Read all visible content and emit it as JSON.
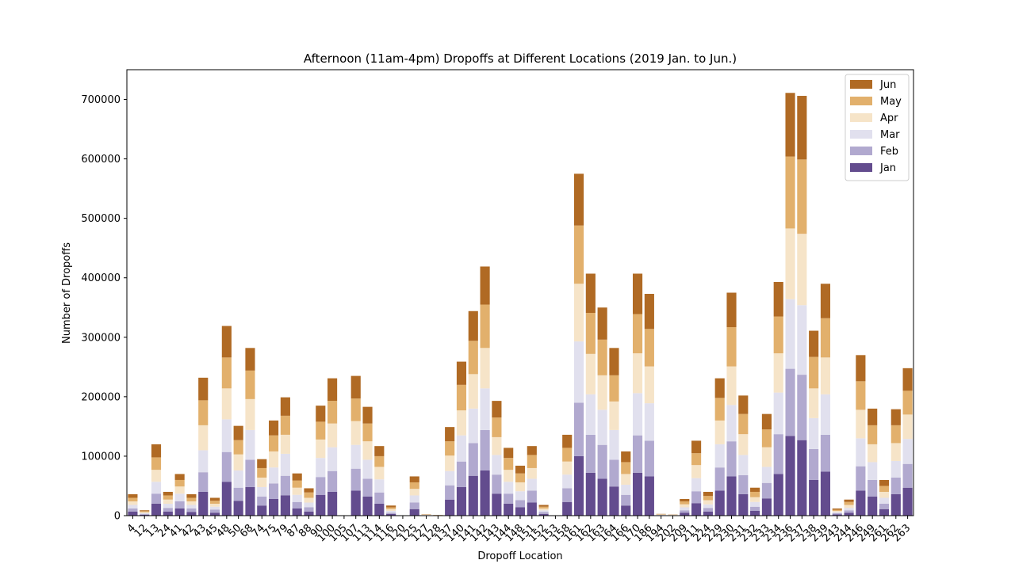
{
  "chart_data": {
    "type": "bar",
    "stacked": true,
    "title": "Afternoon (11am-4pm) Dropoffs at Different Locations (2019 Jan. to Jun.)",
    "xlabel": "Dropoff Location",
    "ylabel": "Number of Dropoffs",
    "ylim": [
      0,
      750000
    ],
    "yticks": [
      0,
      100000,
      200000,
      300000,
      400000,
      500000,
      600000,
      700000
    ],
    "ytick_labels": [
      "0",
      "100000",
      "200000",
      "300000",
      "400000",
      "500000",
      "600000",
      "700000"
    ],
    "legend_position": "top-right",
    "categories": [
      "4",
      "12",
      "13",
      "24",
      "41",
      "42",
      "43",
      "45",
      "48",
      "50",
      "68",
      "74",
      "75",
      "79",
      "87",
      "88",
      "90",
      "100",
      "105",
      "107",
      "113",
      "114",
      "116",
      "120",
      "125",
      "127",
      "128",
      "137",
      "140",
      "141",
      "142",
      "143",
      "144",
      "148",
      "151",
      "152",
      "153",
      "158",
      "161",
      "162",
      "163",
      "164",
      "166",
      "170",
      "186",
      "194",
      "202",
      "209",
      "211",
      "224",
      "229",
      "230",
      "231",
      "232",
      "233",
      "234",
      "236",
      "237",
      "238",
      "239",
      "243",
      "244",
      "246",
      "249",
      "261",
      "262",
      "263"
    ],
    "series": [
      {
        "name": "Jan",
        "color": "#634c8e",
        "values": [
          7000,
          1500,
          20000,
          7000,
          12000,
          6000,
          40000,
          5000,
          57000,
          25000,
          48000,
          17000,
          28000,
          34000,
          12000,
          7000,
          35000,
          40000,
          0,
          42000,
          32000,
          20000,
          3000,
          0,
          11000,
          300,
          200,
          27000,
          48000,
          67000,
          76000,
          37000,
          20000,
          14000,
          22000,
          3000,
          100,
          23000,
          100000,
          72000,
          62000,
          49000,
          17000,
          72000,
          66000,
          500,
          300,
          5000,
          21000,
          7000,
          42000,
          66000,
          36000,
          8000,
          29000,
          70000,
          134000,
          127000,
          60000,
          74000,
          2000,
          5000,
          42000,
          32000,
          11000,
          36000,
          47000
        ]
      },
      {
        "name": "Feb",
        "color": "#b1a9cf",
        "values": [
          5000,
          1500,
          17000,
          6000,
          12000,
          6000,
          33000,
          5000,
          50000,
          22000,
          46000,
          15000,
          26000,
          33000,
          11000,
          7000,
          30000,
          35000,
          0,
          37000,
          30000,
          19000,
          2000,
          0,
          11000,
          300,
          200,
          24000,
          43000,
          55000,
          68000,
          32000,
          17000,
          12000,
          20000,
          3000,
          100,
          23000,
          90000,
          64000,
          57000,
          45000,
          18000,
          63000,
          60000,
          400,
          300,
          4000,
          20000,
          6000,
          39000,
          59000,
          32000,
          7000,
          26000,
          67000,
          113000,
          110000,
          52000,
          62000,
          2000,
          4000,
          41000,
          28000,
          9000,
          28000,
          40000
        ]
      },
      {
        "name": "Mar",
        "color": "#e1e0ee",
        "values": [
          6000,
          1500,
          20000,
          7000,
          13000,
          6000,
          37000,
          5000,
          55000,
          29000,
          50000,
          16000,
          27000,
          37000,
          12000,
          8000,
          32000,
          40000,
          0,
          40000,
          32000,
          22000,
          3000,
          0,
          12000,
          400,
          200,
          24000,
          44000,
          58000,
          70000,
          33000,
          20000,
          15000,
          20000,
          3000,
          100,
          23000,
          103000,
          68000,
          59000,
          50000,
          17000,
          71000,
          63000,
          500,
          300,
          5000,
          22000,
          6000,
          39000,
          61000,
          34000,
          8000,
          27000,
          70000,
          117000,
          117000,
          52000,
          68000,
          2000,
          4000,
          47000,
          30000,
          10000,
          28000,
          42000
        ]
      },
      {
        "name": "Apr",
        "color": "#f6e4c8",
        "values": [
          6000,
          1500,
          20000,
          7000,
          12000,
          6000,
          42000,
          5000,
          52000,
          27000,
          52000,
          16000,
          27000,
          32000,
          12000,
          8000,
          31000,
          40000,
          0,
          40000,
          31000,
          21000,
          3000,
          0,
          11000,
          400,
          200,
          26000,
          42000,
          58000,
          68000,
          30000,
          20000,
          15000,
          18000,
          3000,
          100,
          22000,
          97000,
          68000,
          58000,
          48000,
          18000,
          67000,
          62000,
          500,
          300,
          5000,
          22000,
          7000,
          40000,
          65000,
          35000,
          8000,
          33000,
          66000,
          119000,
          120000,
          50000,
          62000,
          2000,
          5000,
          48000,
          30000,
          10000,
          30000,
          41000
        ]
      },
      {
        "name": "May",
        "color": "#e2b06c",
        "values": [
          6000,
          1500,
          21000,
          7000,
          11000,
          6000,
          42000,
          5000,
          52000,
          24000,
          48000,
          16000,
          27000,
          32000,
          12000,
          9000,
          30000,
          38000,
          0,
          38000,
          30000,
          18000,
          3000,
          0,
          11000,
          400,
          200,
          24000,
          43000,
          56000,
          73000,
          33000,
          20000,
          15000,
          22000,
          3000,
          100,
          23000,
          98000,
          69000,
          60000,
          44000,
          20000,
          66000,
          63000,
          500,
          300,
          5000,
          20000,
          7000,
          38000,
          66000,
          34000,
          9000,
          30000,
          62000,
          121000,
          125000,
          53000,
          66000,
          2000,
          5000,
          48000,
          32000,
          10000,
          30000,
          40000
        ]
      },
      {
        "name": "Jun",
        "color": "#b06a24",
        "values": [
          6000,
          1500,
          22000,
          6000,
          10000,
          6000,
          38000,
          5000,
          53000,
          24000,
          38000,
          15000,
          25000,
          31000,
          12000,
          7000,
          27000,
          38000,
          0,
          38000,
          28000,
          17000,
          3000,
          0,
          10000,
          400,
          200,
          24000,
          39000,
          50000,
          64000,
          28000,
          17000,
          13000,
          15000,
          3000,
          100,
          22000,
          87000,
          66000,
          54000,
          46000,
          18000,
          68000,
          59000,
          500,
          300,
          4000,
          21000,
          7000,
          33000,
          58000,
          31000,
          7000,
          26000,
          58000,
          107000,
          107000,
          44000,
          58000,
          2000,
          4000,
          44000,
          28000,
          10000,
          27000,
          38000
        ]
      }
    ]
  }
}
